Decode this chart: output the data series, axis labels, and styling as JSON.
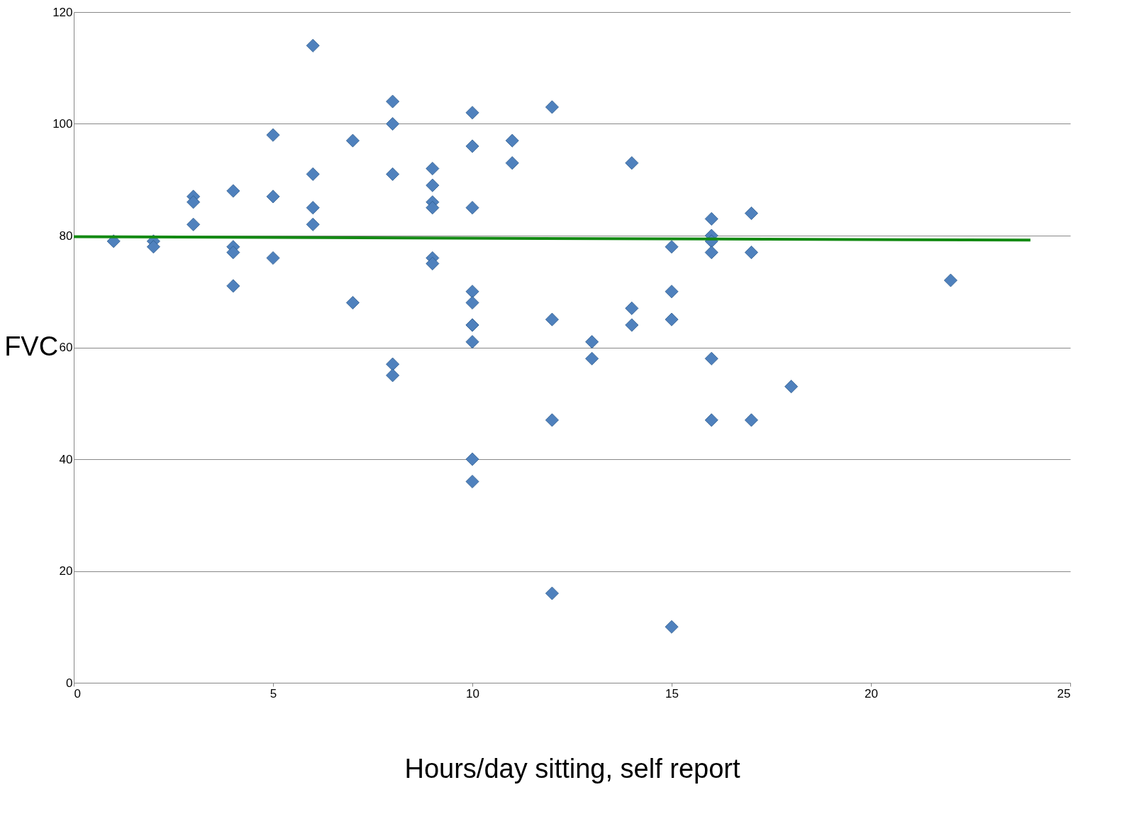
{
  "chart_data": {
    "type": "scatter",
    "xlabel": "Hours/day sitting, self report",
    "ylabel": "FVC",
    "xlim": [
      0,
      25
    ],
    "xticks": [
      0,
      5,
      10,
      15,
      20,
      25
    ],
    "ylim": [
      0,
      120
    ],
    "yticks": [
      0,
      20,
      40,
      60,
      80,
      100,
      120
    ],
    "grid": "y",
    "marker": "diamond",
    "series": [
      {
        "color": "#4f81bd",
        "x": [
          1,
          2,
          2,
          3,
          3,
          3,
          4,
          4,
          4,
          4,
          5,
          5,
          5,
          6,
          6,
          6,
          6,
          7,
          7,
          8,
          8,
          8,
          8,
          8,
          9,
          9,
          9,
          9,
          9,
          9,
          10,
          10,
          10,
          10,
          10,
          10,
          10,
          10,
          10,
          10,
          11,
          11,
          12,
          12,
          12,
          12,
          13,
          13,
          14,
          14,
          14,
          15,
          15,
          15,
          15,
          16,
          16,
          16,
          16,
          16,
          16,
          17,
          17,
          17,
          18,
          22
        ],
        "values": [
          79,
          79,
          78,
          87,
          86,
          82,
          88,
          78,
          77,
          71,
          98,
          87,
          76,
          114,
          91,
          85,
          82,
          97,
          68,
          104,
          100,
          91,
          57,
          55,
          92,
          89,
          86,
          85,
          76,
          75,
          102,
          96,
          85,
          70,
          68,
          64,
          64,
          61,
          40,
          36,
          97,
          93,
          103,
          65,
          47,
          16,
          61,
          58,
          93,
          67,
          64,
          78,
          70,
          65,
          10,
          83,
          80,
          79,
          77,
          58,
          47,
          84,
          77,
          47,
          53,
          72
        ]
      },
      {
        "type": "line",
        "color": "#138a13",
        "marker": "none",
        "x": [
          0,
          24
        ],
        "values": [
          79.8,
          79.2
        ]
      }
    ]
  }
}
